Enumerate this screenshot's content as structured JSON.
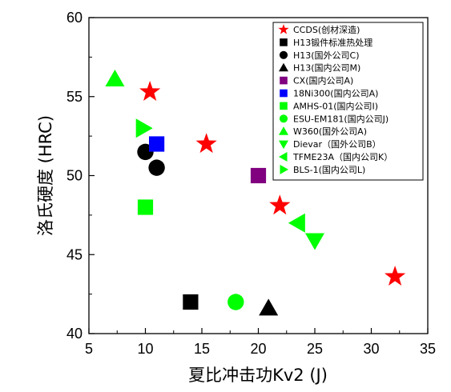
{
  "chart_data": {
    "type": "scatter",
    "title": "",
    "xlabel": "夏比冲击功Kv2 (J)",
    "ylabel": "洛氏硬度 (HRC)",
    "xlim": [
      5,
      35
    ],
    "ylim": [
      40,
      60
    ],
    "xticks": [
      "5",
      "10",
      "15",
      "20",
      "25",
      "30",
      "35"
    ],
    "yticks": [
      "40",
      "45",
      "50",
      "55",
      "60"
    ],
    "grid": false,
    "legend_position": "top-right",
    "series": [
      {
        "name": "CCDS(创材深造)",
        "marker": "star",
        "color": "#ff0000",
        "points": [
          [
            10.4,
            55.3
          ],
          [
            15.4,
            52.0
          ],
          [
            21.9,
            48.1
          ],
          [
            32.1,
            43.6
          ]
        ]
      },
      {
        "name": "H13锻件标准热处理",
        "marker": "square",
        "color": "#000000",
        "points": [
          [
            14.0,
            42.0
          ]
        ]
      },
      {
        "name": "H13(国外公司C)",
        "marker": "circle",
        "color": "#000000",
        "points": [
          [
            10.0,
            51.5
          ],
          [
            11.0,
            50.5
          ]
        ]
      },
      {
        "name": "H13(国内公司M)",
        "marker": "triangle-up",
        "color": "#000000",
        "points": [
          [
            20.9,
            41.6
          ]
        ]
      },
      {
        "name": "CX(国内公司A)",
        "marker": "square",
        "color": "#800080",
        "points": [
          [
            20.0,
            50.0
          ]
        ]
      },
      {
        "name": "18Ni300(国内公司A)",
        "marker": "square",
        "color": "#0000ff",
        "points": [
          [
            11.0,
            52.0
          ]
        ]
      },
      {
        "name": "AMHS-01(国内公司I)",
        "marker": "square",
        "color": "#00ff00",
        "points": [
          [
            10.0,
            48.0
          ]
        ]
      },
      {
        "name": "ESU-EM181(国内公司J)",
        "marker": "circle",
        "color": "#00ff00",
        "points": [
          [
            18.0,
            42.0
          ]
        ]
      },
      {
        "name": "W360(国外公司A)",
        "marker": "triangle-up",
        "color": "#00ff00",
        "points": [
          [
            7.3,
            56.1
          ]
        ]
      },
      {
        "name": "Dievar（国外公司B）",
        "marker": "triangle-down",
        "color": "#00ff00",
        "points": [
          [
            25.0,
            45.9
          ]
        ]
      },
      {
        "name": "TFME23A（国内公司K）",
        "marker": "triangle-left",
        "color": "#00ff00",
        "points": [
          [
            23.5,
            47.0
          ]
        ]
      },
      {
        "name": "BLS-1(国内公司L)",
        "marker": "triangle-right",
        "color": "#00ff00",
        "points": [
          [
            9.8,
            53.0
          ]
        ]
      }
    ]
  }
}
